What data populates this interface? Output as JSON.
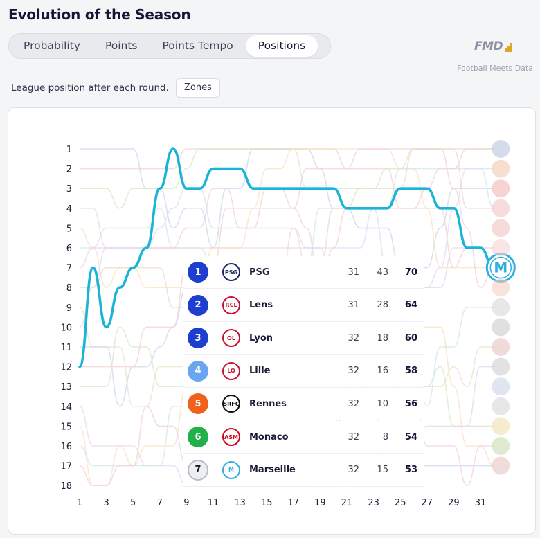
{
  "header": {
    "title": "Evolution of the Season",
    "tabs": [
      {
        "label": "Probability",
        "active": false
      },
      {
        "label": "Points",
        "active": false
      },
      {
        "label": "Points Tempo",
        "active": false
      },
      {
        "label": "Positions",
        "active": true
      }
    ],
    "brand": "FMD",
    "brand_caption": "Football Meets Data"
  },
  "controls": {
    "description": "League position after each round.",
    "zones_label": "Zones"
  },
  "colors": {
    "highlight_line": "#19b4d6",
    "faded_lines": [
      "#c8d8ee",
      "#f3d2cf",
      "#d7e8c4",
      "#e8d6f0",
      "#f8e2c2",
      "#cfe8e8",
      "#f1cfe0",
      "#dcdcf4",
      "#e6e6c8",
      "#f0d8c8"
    ]
  },
  "chart_data": {
    "type": "line",
    "y_axis": {
      "reversed": true,
      "range": [
        1,
        18
      ],
      "ticks": [
        1,
        2,
        3,
        4,
        5,
        6,
        7,
        8,
        9,
        10,
        11,
        12,
        13,
        14,
        15,
        16,
        17,
        18
      ]
    },
    "x_axis": {
      "range": [
        1,
        32
      ],
      "ticks": [
        1,
        3,
        5,
        7,
        9,
        11,
        13,
        15,
        17,
        19,
        21,
        23,
        25,
        27,
        29,
        31
      ]
    },
    "highlight_series": {
      "name": "Marseille",
      "x": [
        1,
        2,
        3,
        4,
        5,
        6,
        7,
        8,
        9,
        10,
        11,
        12,
        13,
        14,
        15,
        16,
        17,
        18,
        19,
        20,
        21,
        22,
        23,
        24,
        25,
        26,
        27,
        28,
        29,
        30,
        31,
        32
      ],
      "positions": [
        12,
        7,
        10,
        8,
        7,
        6,
        3,
        1,
        3,
        3,
        2,
        2,
        2,
        3,
        3,
        3,
        3,
        3,
        3,
        3,
        4,
        4,
        4,
        4,
        3,
        3,
        3,
        4,
        4,
        6,
        6,
        7
      ]
    },
    "table": [
      {
        "pos": "1",
        "team": "PSG",
        "logo_text": "PSG",
        "played": "31",
        "gd": "43",
        "pts": "70",
        "badge_color": "#1e3ed0",
        "logo_color": "#1a2a63"
      },
      {
        "pos": "2",
        "team": "Lens",
        "logo_text": "RCL",
        "played": "31",
        "gd": "28",
        "pts": "64",
        "badge_color": "#1e3ed0",
        "logo_color": "#c8102e"
      },
      {
        "pos": "3",
        "team": "Lyon",
        "logo_text": "OL",
        "played": "32",
        "gd": "18",
        "pts": "60",
        "badge_color": "#1e3ed0",
        "logo_color": "#c8102e"
      },
      {
        "pos": "4",
        "team": "Lille",
        "logo_text": "LO",
        "played": "32",
        "gd": "16",
        "pts": "58",
        "badge_color": "#6aa6f0",
        "logo_color": "#c8102e"
      },
      {
        "pos": "5",
        "team": "Rennes",
        "logo_text": "SRFC",
        "played": "32",
        "gd": "10",
        "pts": "56",
        "badge_color": "#f0621c",
        "logo_color": "#111111"
      },
      {
        "pos": "6",
        "team": "Monaco",
        "logo_text": "ASM",
        "played": "32",
        "gd": "8",
        "pts": "54",
        "badge_color": "#22b04a",
        "logo_color": "#d4001f"
      },
      {
        "pos": "7",
        "team": "Marseille",
        "logo_text": "M",
        "played": "32",
        "gd": "15",
        "pts": "53",
        "badge_color": "#eceef2",
        "logo_color": "#2faee0"
      }
    ]
  }
}
